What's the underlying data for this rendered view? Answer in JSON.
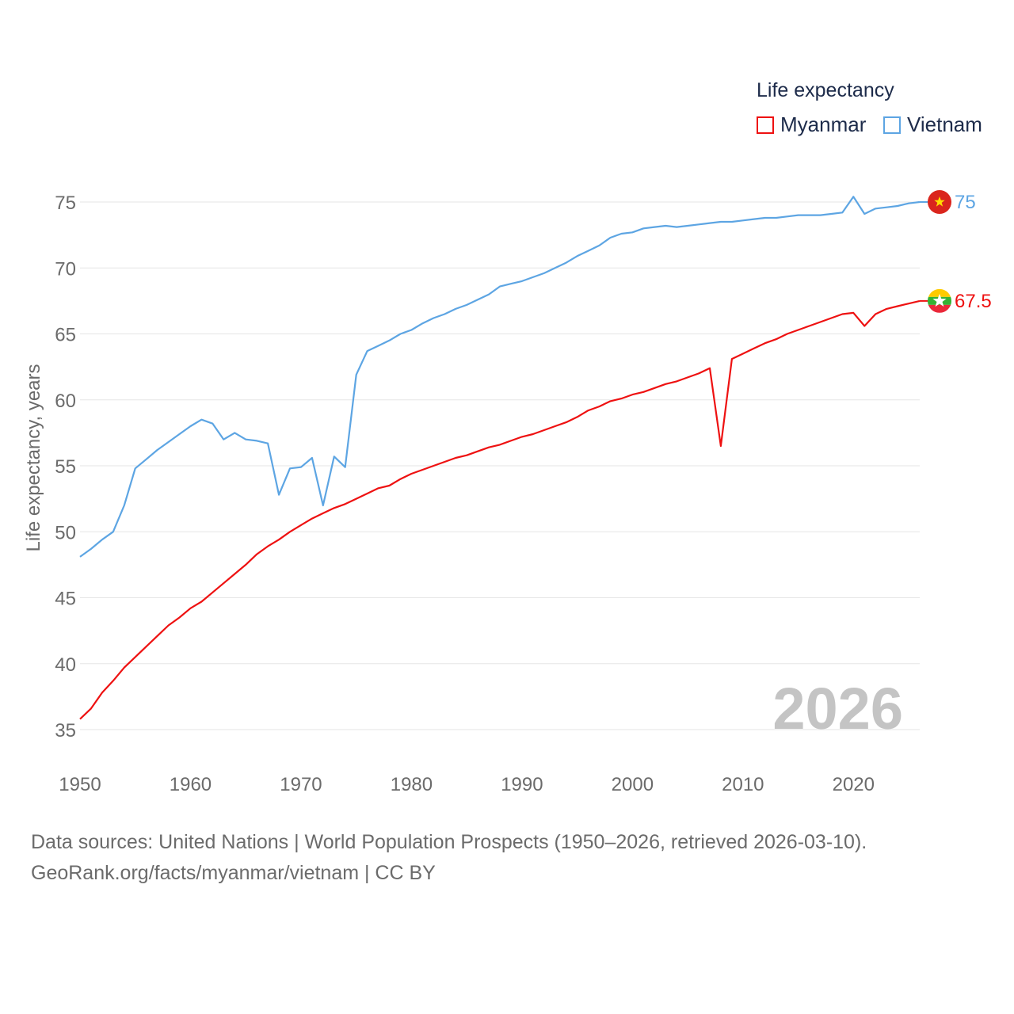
{
  "legend": {
    "title": "Life expectancy",
    "items": [
      {
        "name": "Myanmar",
        "color": "#ee1111"
      },
      {
        "name": "Vietnam",
        "color": "#5da5e3"
      }
    ]
  },
  "colors": {
    "myanmar": "#ee1111",
    "vietnam": "#5da5e3",
    "grid": "#e6e6e6",
    "axis_text": "#6b6b6b",
    "year_watermark": "#c4c4c4"
  },
  "icons": {
    "vietnam_flag": "vietnam-flag-icon",
    "myanmar_flag": "myanmar-flag-icon"
  },
  "source": {
    "line1": "Data sources: United Nations | World Population Prospects (1950–2026, retrieved 2026-03-10).",
    "line2": "GeoRank.org/facts/myanmar/vietnam | CC BY"
  },
  "chart_data": {
    "type": "line",
    "title": "Life expectancy",
    "xlabel": "",
    "ylabel": "Life expectancy, years",
    "xlim": [
      1950,
      2026
    ],
    "ylim": [
      35,
      75
    ],
    "xticks": [
      1950,
      1960,
      1970,
      1980,
      1990,
      2000,
      2010,
      2020
    ],
    "yticks": [
      35,
      40,
      45,
      50,
      55,
      60,
      65,
      70,
      75
    ],
    "grid": true,
    "legend_position": "top-right",
    "year_label": "2026",
    "series": [
      {
        "name": "Myanmar",
        "end_label": "67.5",
        "x": [
          1950,
          1951,
          1952,
          1953,
          1954,
          1955,
          1956,
          1957,
          1958,
          1959,
          1960,
          1961,
          1962,
          1963,
          1964,
          1965,
          1966,
          1967,
          1968,
          1969,
          1970,
          1971,
          1972,
          1973,
          1974,
          1975,
          1976,
          1977,
          1978,
          1979,
          1980,
          1981,
          1982,
          1983,
          1984,
          1985,
          1986,
          1987,
          1988,
          1989,
          1990,
          1991,
          1992,
          1993,
          1994,
          1995,
          1996,
          1997,
          1998,
          1999,
          2000,
          2001,
          2002,
          2003,
          2004,
          2005,
          2006,
          2007,
          2008,
          2009,
          2010,
          2011,
          2012,
          2013,
          2014,
          2015,
          2016,
          2017,
          2018,
          2019,
          2020,
          2021,
          2022,
          2023,
          2024,
          2025,
          2026
        ],
        "y": [
          35.8,
          36.6,
          37.8,
          38.7,
          39.7,
          40.5,
          41.3,
          42.1,
          42.9,
          43.5,
          44.2,
          44.7,
          45.4,
          46.1,
          46.8,
          47.5,
          48.3,
          48.9,
          49.4,
          50.0,
          50.5,
          51.0,
          51.4,
          51.8,
          52.1,
          52.5,
          52.9,
          53.3,
          53.5,
          54.0,
          54.4,
          54.7,
          55.0,
          55.3,
          55.6,
          55.8,
          56.1,
          56.4,
          56.6,
          56.9,
          57.2,
          57.4,
          57.7,
          58.0,
          58.3,
          58.7,
          59.2,
          59.5,
          59.9,
          60.1,
          60.4,
          60.6,
          60.9,
          61.2,
          61.4,
          61.7,
          62.0,
          62.4,
          56.5,
          63.1,
          63.5,
          63.9,
          64.3,
          64.6,
          65.0,
          65.3,
          65.6,
          65.9,
          66.2,
          66.5,
          66.6,
          65.6,
          66.5,
          66.9,
          67.1,
          67.3,
          67.5
        ]
      },
      {
        "name": "Vietnam",
        "end_label": "75",
        "x": [
          1950,
          1951,
          1952,
          1953,
          1954,
          1955,
          1956,
          1957,
          1958,
          1959,
          1960,
          1961,
          1962,
          1963,
          1964,
          1965,
          1966,
          1967,
          1968,
          1969,
          1970,
          1971,
          1972,
          1973,
          1974,
          1975,
          1976,
          1977,
          1978,
          1979,
          1980,
          1981,
          1982,
          1983,
          1984,
          1985,
          1986,
          1987,
          1988,
          1989,
          1990,
          1991,
          1992,
          1993,
          1994,
          1995,
          1996,
          1997,
          1998,
          1999,
          2000,
          2001,
          2002,
          2003,
          2004,
          2005,
          2006,
          2007,
          2008,
          2009,
          2010,
          2011,
          2012,
          2013,
          2014,
          2015,
          2016,
          2017,
          2018,
          2019,
          2020,
          2021,
          2022,
          2023,
          2024,
          2025,
          2026
        ],
        "y": [
          48.1,
          48.7,
          49.4,
          50.0,
          52.0,
          54.8,
          55.5,
          56.2,
          56.8,
          57.4,
          58.0,
          58.5,
          58.2,
          57.0,
          57.5,
          57.0,
          56.9,
          56.7,
          52.8,
          54.8,
          54.9,
          55.6,
          52.0,
          55.7,
          54.9,
          61.9,
          63.7,
          64.1,
          64.5,
          65.0,
          65.3,
          65.8,
          66.2,
          66.5,
          66.9,
          67.2,
          67.6,
          68.0,
          68.6,
          68.8,
          69.0,
          69.3,
          69.6,
          70.0,
          70.4,
          70.9,
          71.3,
          71.7,
          72.3,
          72.6,
          72.7,
          73.0,
          73.1,
          73.2,
          73.1,
          73.2,
          73.3,
          73.4,
          73.5,
          73.5,
          73.6,
          73.7,
          73.8,
          73.8,
          73.9,
          74.0,
          74.0,
          74.0,
          74.1,
          74.2,
          75.4,
          74.1,
          74.5,
          74.6,
          74.7,
          74.9,
          75.0
        ]
      }
    ]
  }
}
